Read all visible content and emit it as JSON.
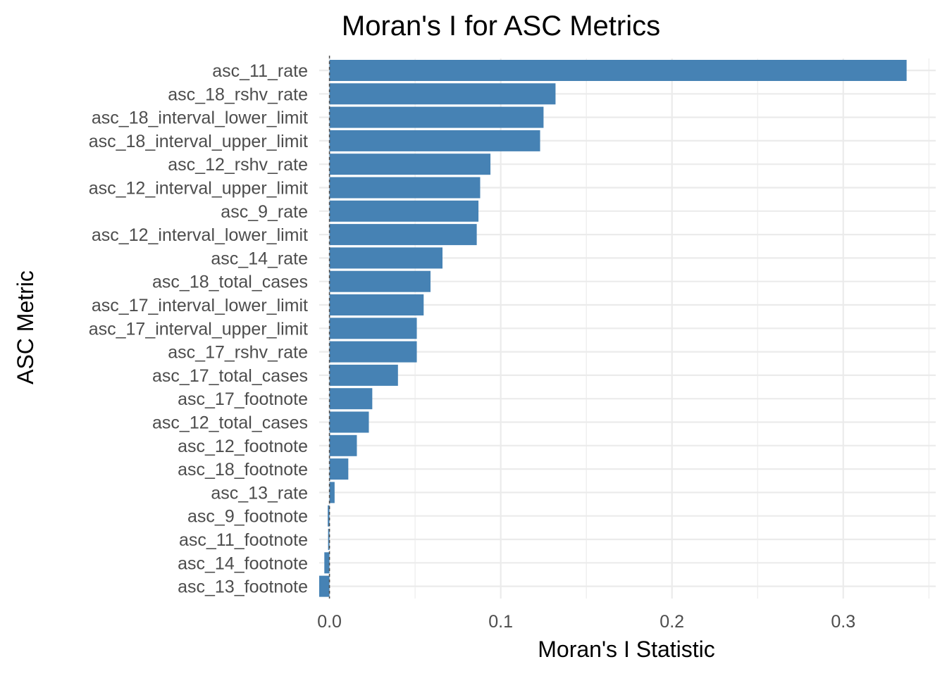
{
  "chart_data": {
    "type": "bar",
    "orientation": "horizontal",
    "title": "Moran's I for ASC Metrics",
    "xlabel": "Moran's I Statistic",
    "ylabel": "ASC Metric",
    "bar_color": "#4682B4",
    "zero_line_color": "#4d4d4d",
    "grid": true,
    "xlim": [
      -0.006,
      0.354
    ],
    "x_ticks": [
      0.0,
      0.1,
      0.2,
      0.3
    ],
    "x_tick_labels": [
      "0.0",
      "0.1",
      "0.2",
      "0.3"
    ],
    "categories": [
      "asc_11_rate",
      "asc_18_rshv_rate",
      "asc_18_interval_lower_limit",
      "asc_18_interval_upper_limit",
      "asc_12_rshv_rate",
      "asc_12_interval_upper_limit",
      "asc_9_rate",
      "asc_12_interval_lower_limit",
      "asc_14_rate",
      "asc_18_total_cases",
      "asc_17_interval_lower_limit",
      "asc_17_interval_upper_limit",
      "asc_17_rshv_rate",
      "asc_17_total_cases",
      "asc_17_footnote",
      "asc_12_total_cases",
      "asc_12_footnote",
      "asc_18_footnote",
      "asc_13_rate",
      "asc_9_footnote",
      "asc_11_footnote",
      "asc_14_footnote",
      "asc_13_footnote"
    ],
    "values": [
      0.337,
      0.132,
      0.125,
      0.123,
      0.094,
      0.088,
      0.087,
      0.086,
      0.066,
      0.059,
      0.055,
      0.051,
      0.051,
      0.04,
      0.025,
      0.023,
      0.016,
      0.011,
      0.003,
      -0.001,
      -0.0008,
      -0.003,
      -0.006
    ]
  }
}
